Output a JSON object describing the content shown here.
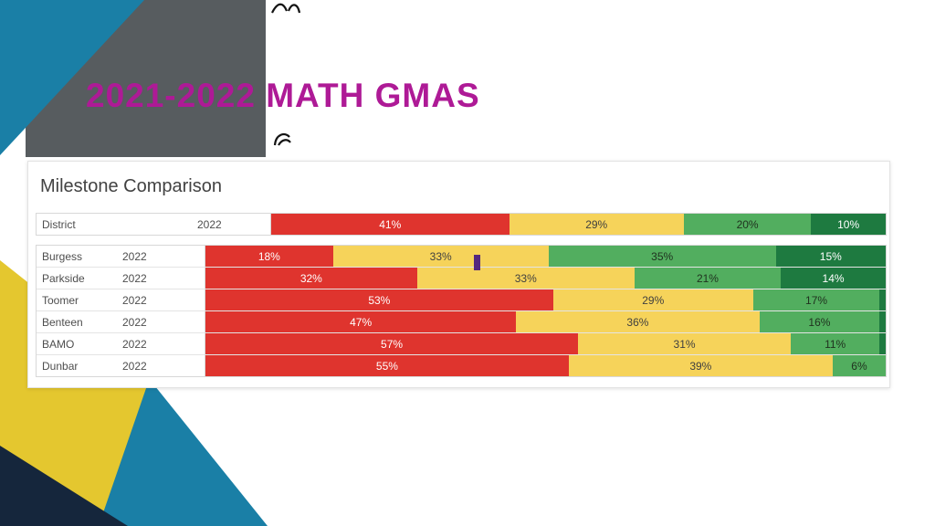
{
  "slide": {
    "title": "2021-2022 MATH GMAS",
    "title_color": "#ae1a96"
  },
  "chart": {
    "title": "Milestone Comparison",
    "colors": {
      "red": "#df342e",
      "yellow": "#f6d35a",
      "green": "#52ae5f",
      "dark_green": "#1e7a40"
    },
    "segment_text_colors": {
      "red": "#ffffff",
      "yellow": "#3f3f3f",
      "green": "#20321f",
      "dark_green": "#ffffff"
    }
  },
  "chart_data": {
    "type": "bar",
    "stacked": true,
    "orientation": "horizontal",
    "title": "Milestone Comparison",
    "year": "2022",
    "value_suffix": "%",
    "categories": [
      "District",
      "Burgess",
      "Parkside",
      "Toomer",
      "Benteen",
      "BAMO",
      "Dunbar"
    ],
    "series": [
      {
        "name": "red",
        "color": "#df342e",
        "values": [
          41,
          18,
          32,
          53,
          47,
          57,
          55
        ]
      },
      {
        "name": "yellow",
        "color": "#f6d35a",
        "values": [
          29,
          33,
          33,
          29,
          36,
          31,
          39
        ]
      },
      {
        "name": "green",
        "color": "#52ae5f",
        "values": [
          20,
          35,
          21,
          17,
          16,
          11,
          6
        ]
      },
      {
        "name": "dark_green",
        "color": "#1e7a40",
        "values": [
          10,
          15,
          14,
          1,
          1,
          1,
          0
        ]
      }
    ],
    "legend": false,
    "grid": false
  }
}
